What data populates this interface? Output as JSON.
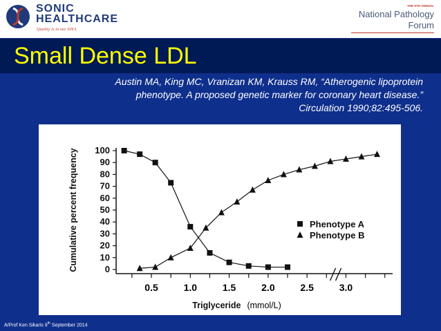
{
  "header": {
    "brand_name_line1": "SONIC",
    "brand_name_line2": "HEALTHCARE",
    "brand_tagline": "Quality is in our DNA",
    "forum_annual": "THE 5TH ANNUAL",
    "forum_name_line1": "National Pathology",
    "forum_name_line2": "Forum"
  },
  "slide": {
    "title": "Small Dense LDL",
    "citation_line1": "Austin MA, King MC, Vranizan KM, Krauss RM, “Atherogenic lipoprotein",
    "citation_line2": "phenotype. A proposed genetic marker for coronary heart disease.”",
    "citation_line3": "Circulation 1990;82:495-506."
  },
  "footer": {
    "author": "A/Prof Ken Sikaris",
    "date_day": "9",
    "date_suffix": "th",
    "date_rest": "September 2014"
  },
  "colors": {
    "background": "#0f2f8c",
    "title_band": "#001a55",
    "title_text": "#ffff00",
    "chart_ink": "#111111"
  },
  "chart_data": {
    "type": "line",
    "ylabel": "Cumulative percent frequency",
    "xlabel": "Triglyceride",
    "x_unit": "(mmol/L)",
    "ylim": [
      0,
      100
    ],
    "y_ticks": [
      0,
      10,
      20,
      30,
      40,
      50,
      60,
      70,
      80,
      90,
      100
    ],
    "x_tick_labels": [
      "0.5",
      "1.0",
      "1.5",
      "2.0",
      "2.5",
      "3.0"
    ],
    "x_tick_values": [
      0.5,
      1.0,
      1.5,
      2.0,
      2.5,
      3.0
    ],
    "xlim": [
      0.1,
      3.6
    ],
    "axis_break": true,
    "legend": "right",
    "series": [
      {
        "name": "Phenotype A",
        "marker": "square",
        "x": [
          0.15,
          0.35,
          0.55,
          0.75,
          1.0,
          1.25,
          1.5,
          1.75,
          2.0,
          2.25
        ],
        "y": [
          100,
          97,
          90,
          73,
          36,
          14,
          6,
          3,
          2,
          2
        ]
      },
      {
        "name": "Phenotype B",
        "marker": "triangle",
        "x": [
          0.35,
          0.55,
          0.75,
          1.0,
          1.2,
          1.4,
          1.6,
          1.8,
          2.0,
          2.2,
          2.4,
          2.6,
          2.8,
          3.0,
          3.2,
          3.4
        ],
        "y": [
          1,
          2,
          10,
          18,
          35,
          48,
          57,
          67,
          75,
          80,
          84,
          87,
          91,
          93,
          95,
          97
        ]
      }
    ]
  }
}
